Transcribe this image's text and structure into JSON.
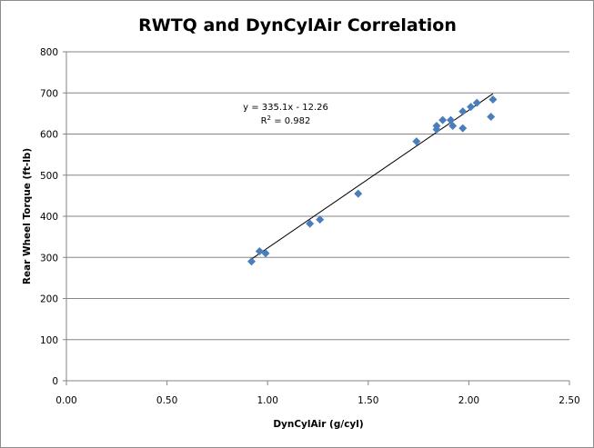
{
  "chart_data": {
    "type": "scatter",
    "title": "RWTQ and DynCylAir Correlation",
    "xlabel": "DynCylAir (g/cyl)",
    "ylabel": "Rear Wheel Torque (ft-lb)",
    "xlim": [
      0,
      2.5
    ],
    "ylim": [
      0,
      800
    ],
    "x_ticks": [
      "0.00",
      "0.50",
      "1.00",
      "1.50",
      "2.00",
      "2.50"
    ],
    "y_ticks": [
      "0",
      "100",
      "200",
      "300",
      "400",
      "500",
      "600",
      "700",
      "800"
    ],
    "grid": "horizontal",
    "marker_color": "#4a7ebb",
    "series": [
      {
        "points": [
          [
            0.92,
            290
          ],
          [
            0.96,
            315
          ],
          [
            0.99,
            310
          ],
          [
            1.21,
            382
          ],
          [
            1.26,
            392
          ],
          [
            1.45,
            455
          ],
          [
            1.74,
            582
          ],
          [
            1.84,
            611
          ],
          [
            1.84,
            620
          ],
          [
            1.87,
            634
          ],
          [
            1.91,
            634
          ],
          [
            1.92,
            620
          ],
          [
            1.97,
            614
          ],
          [
            1.97,
            655
          ],
          [
            2.01,
            666
          ],
          [
            2.04,
            676
          ],
          [
            2.11,
            642
          ],
          [
            2.12,
            684
          ]
        ]
      }
    ],
    "trendline": {
      "slope": 335.1,
      "intercept": -12.26,
      "x_range": [
        0.92,
        2.12
      ],
      "equation": "y = 335.1x - 12.26",
      "r2_prefix": "R",
      "r2_sup": "2",
      "r2_value": " = 0.982"
    }
  }
}
